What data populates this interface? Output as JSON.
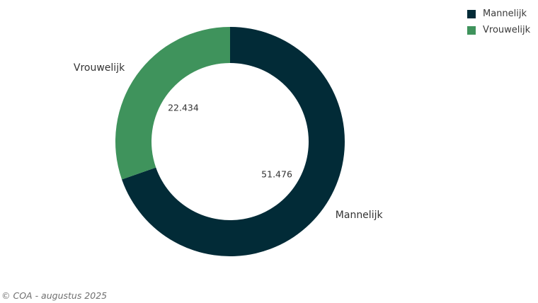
{
  "chart_data": {
    "type": "pie",
    "donut": true,
    "categories": [
      "Mannelijk",
      "Vrouwelijk"
    ],
    "values": [
      51476,
      22434
    ],
    "value_labels": [
      "51.476",
      "22.434"
    ],
    "colors": [
      "#022b37",
      "#3f935c"
    ],
    "legend_position": "top-right"
  },
  "legend": {
    "items": [
      {
        "label": "Mannelijk",
        "color": "#022b37"
      },
      {
        "label": "Vrouwelijk",
        "color": "#3f935c"
      }
    ]
  },
  "footer": {
    "source": "© COA - augustus 2025"
  }
}
